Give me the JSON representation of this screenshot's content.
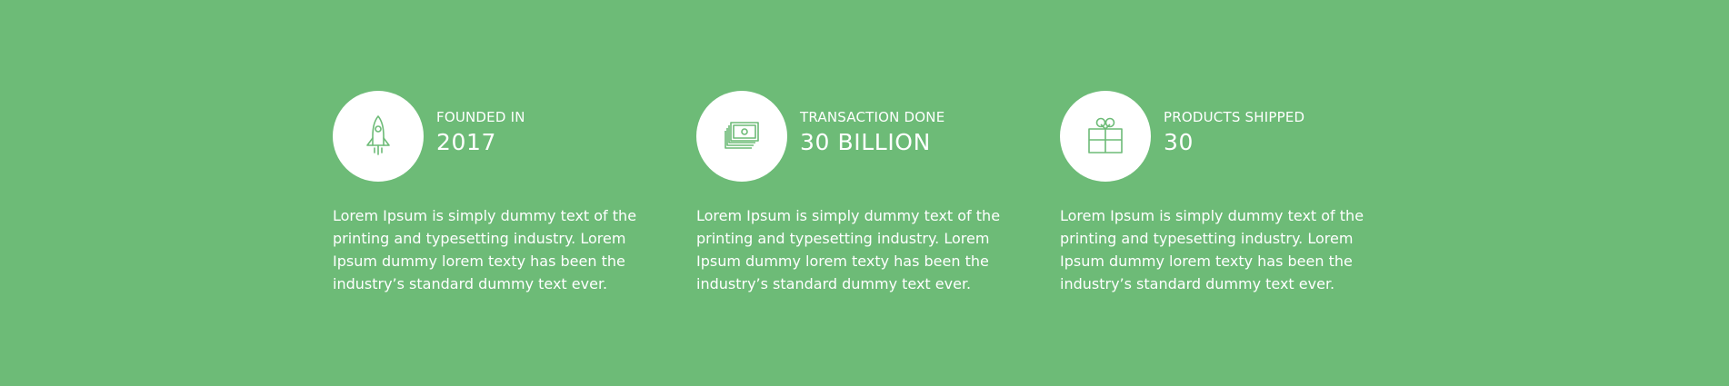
{
  "stats": [
    {
      "icon": "rocket-icon",
      "label": "FOUNDED IN",
      "value": "2017",
      "description": "Lorem Ipsum is simply dummy text of the printing and typesetting industry. Lorem Ipsum dummy lorem texty has been the industry’s standard dummy text ever."
    },
    {
      "icon": "money-stack-icon",
      "label": "TRANSACTION DONE",
      "value": "30 BILLION",
      "description": "Lorem Ipsum is simply dummy text of the printing and typesetting industry. Lorem Ipsum dummy lorem texty has been the industry’s standard dummy text ever."
    },
    {
      "icon": "gift-icon",
      "label": "PRODUCTS SHIPPED",
      "value": "30",
      "description": "Lorem Ipsum is simply dummy text of the printing and typesetting industry. Lorem Ipsum dummy lorem texty has been the industry’s standard dummy text ever."
    }
  ],
  "colors": {
    "background": "#6dbb77",
    "icon_stroke": "#6dbb77",
    "circle": "#ffffff",
    "text": "#ffffff"
  }
}
